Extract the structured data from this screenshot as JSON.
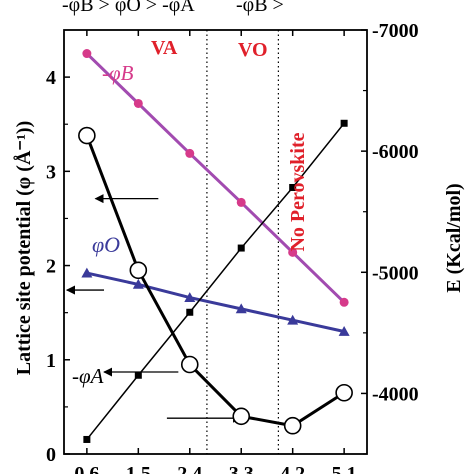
{
  "chart_data": {
    "type": "line",
    "x": [
      0.6,
      1.5,
      2.4,
      3.3,
      4.2,
      5.1
    ],
    "x_tick_labels": [
      "0.6",
      "1.5",
      "2.4",
      "3.3",
      "4.2",
      "5.1"
    ],
    "xlim": [
      0.2,
      5.5
    ],
    "ylabel": "Lattice site potential (φ (Å⁻¹))",
    "ylim": [
      0,
      4.5
    ],
    "y_ticks": [
      0,
      1,
      2,
      3,
      4
    ],
    "y_tick_labels": [
      "0",
      "1",
      "2",
      "3",
      "4"
    ],
    "y2label": "E (Kcal/mol)",
    "y2lim": [
      -3500,
      -7000
    ],
    "y2_ticks": [
      -4000,
      -5000,
      -6000,
      -7000
    ],
    "y2_tick_labels": [
      "-4000",
      "-5000",
      "-6000",
      "-7000"
    ],
    "series": [
      {
        "name": "-φB",
        "axis": "left",
        "marker": "circle-filled",
        "color": "#d63a8a",
        "line_color": "#a24bb0",
        "x": [
          0.6,
          1.5,
          2.4,
          3.3,
          4.2,
          5.1
        ],
        "y": [
          4.25,
          3.72,
          3.19,
          2.67,
          2.14,
          1.61
        ]
      },
      {
        "name": "φO",
        "axis": "left",
        "marker": "triangle",
        "color": "#3a3a9a",
        "x": [
          0.6,
          1.5,
          2.4,
          3.3,
          4.2,
          5.1
        ],
        "y": [
          1.92,
          1.8,
          1.66,
          1.54,
          1.42,
          1.3
        ]
      },
      {
        "name": "-φA",
        "axis": "left",
        "marker": "circle-open",
        "color": "#000000",
        "x": [
          0.6,
          1.5,
          2.4,
          3.3,
          4.2,
          5.1
        ],
        "y": [
          3.38,
          1.95,
          0.95,
          0.4,
          0.3,
          0.65
        ]
      },
      {
        "name": "E",
        "axis": "right",
        "marker": "square",
        "color": "#000000",
        "x": [
          0.6,
          1.5,
          2.4,
          3.3,
          4.2,
          5.1
        ],
        "y": [
          -3620,
          -4150,
          -4670,
          -5200,
          -5700,
          -6230
        ]
      }
    ],
    "vlines": [
      2.7,
      3.95
    ],
    "annotations": {
      "top_label_1": "-φB > φO > -φA",
      "top_label_2": "-φB >",
      "region_a": "VA",
      "region_o": "VO",
      "no_perovskite": "No Perovskite",
      "label_b": "-φB",
      "label_o": "φO",
      "label_a": "-φA"
    },
    "arrows": [
      {
        "from": [
          1.85,
          2.71
        ],
        "to": [
          0.75,
          2.71
        ]
      },
      {
        "from": [
          0.9,
          1.74
        ],
        "to": [
          0.25,
          1.74
        ]
      },
      {
        "from": [
          2.2,
          0.87
        ],
        "to": [
          0.9,
          0.87
        ]
      },
      {
        "from": [
          2.0,
          0.38
        ],
        "to": [
          3.3,
          0.38
        ]
      }
    ],
    "colors": {
      "axis": "#000000",
      "annotation_red": "#e0202a",
      "phi_o_label": "#3a3a9a",
      "phi_b_label": "#d63a8a"
    }
  }
}
